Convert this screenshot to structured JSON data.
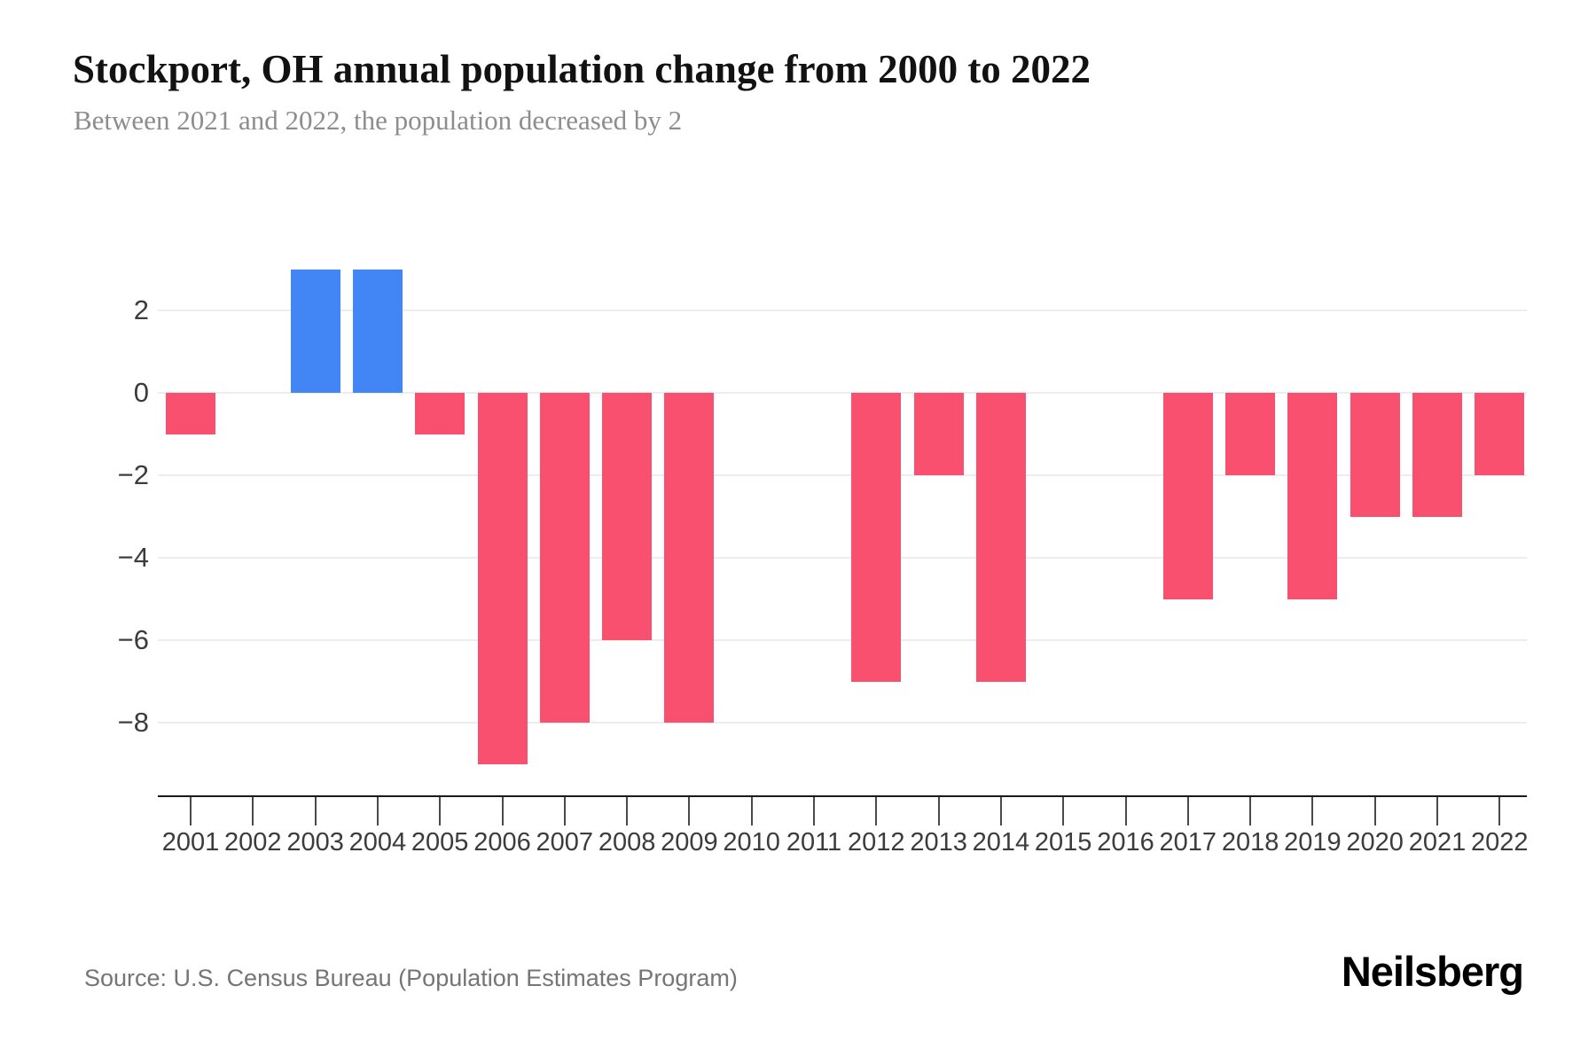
{
  "page": {
    "background": "#ffffff"
  },
  "header": {
    "title": "Stockport, OH annual population change from 2000 to 2022",
    "subtitle": "Between 2021 and 2022, the population decreased by 2"
  },
  "chart_data": {
    "type": "bar",
    "title": "Stockport, OH annual population change from 2000 to 2022",
    "subtitle": "Between 2021 and 2022, the population decreased by 2",
    "categories": [
      "2001",
      "2002",
      "2003",
      "2004",
      "2005",
      "2006",
      "2007",
      "2008",
      "2009",
      "2010",
      "2011",
      "2012",
      "2013",
      "2014",
      "2015",
      "2016",
      "2017",
      "2018",
      "2019",
      "2020",
      "2021",
      "2022"
    ],
    "values": [
      -1,
      0,
      3,
      3,
      -1,
      -9,
      -8,
      -6,
      -8,
      0,
      0,
      -7,
      -2,
      -7,
      0,
      0,
      -5,
      -2,
      -5,
      -3,
      -3,
      -2
    ],
    "yticks": [
      2,
      0,
      -2,
      -4,
      -6,
      -8
    ],
    "ylim": [
      -9.8,
      3.5
    ],
    "grid": true,
    "legend": false,
    "xlabel": "",
    "ylabel": "",
    "colors": {
      "positive": "#4285F4",
      "negative": "#F8506E"
    },
    "gridline_color": "#ededed"
  },
  "footer": {
    "source": "Source: U.S. Census Bureau (Population Estimates Program)",
    "brand": "Neilsberg"
  }
}
